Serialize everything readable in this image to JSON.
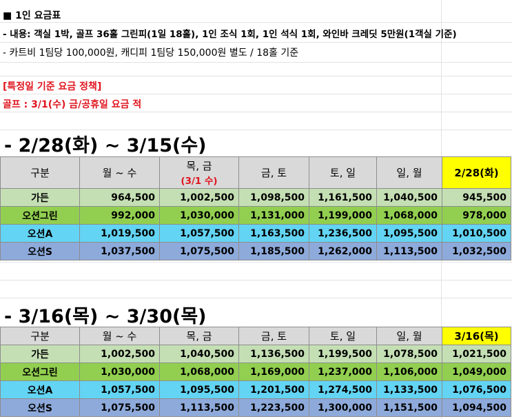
{
  "header": {
    "title": "■ 1인 요금표",
    "line1": " - 내용: 객실 1박, 골프 36홀 그린피(1일 18홀), 1인 조식 1회, 1인 석식 1회, 와인바 크레딧 5만원(1객실 기준)",
    "line2": " - 카트비 1팀당 100,000원, 캐디피 1팀당 150,000원 별도 / 18홀 기준"
  },
  "policy": {
    "title": "[특정일 기준 요금 정책]",
    "note": "골프 : 3/1(수) 금/공휴일 요금 적"
  },
  "sections": [
    {
      "title": "- 2/28(화) ~ 3/15(수)",
      "headers": [
        "구분",
        "월 ~ 수",
        "목, 금",
        "금, 토",
        "토, 일",
        "일, 월",
        "2/28(화)"
      ],
      "header_sub": "(3/1 수)",
      "rows": [
        {
          "name": "가든",
          "values": [
            "964,500",
            "1,002,500",
            "1,098,500",
            "1,161,500",
            "1,040,500",
            "945,500"
          ]
        },
        {
          "name": "오션그린",
          "values": [
            "992,000",
            "1,030,000",
            "1,131,000",
            "1,199,000",
            "1,068,000",
            "978,000"
          ]
        },
        {
          "name": "오션A",
          "values": [
            "1,019,500",
            "1,057,500",
            "1,163,500",
            "1,236,500",
            "1,095,500",
            "1,010,500"
          ]
        },
        {
          "name": "오션S",
          "values": [
            "1,037,500",
            "1,075,500",
            "1,185,500",
            "1,262,000",
            "1,113,500",
            "1,032,500"
          ]
        }
      ]
    },
    {
      "title": "- 3/16(목) ~ 3/30(목)",
      "headers": [
        "구분",
        "월 ~ 수",
        "목, 금",
        "금, 토",
        "토, 일",
        "일, 월",
        "3/16(목)"
      ],
      "rows": [
        {
          "name": "가든",
          "values": [
            "1,002,500",
            "1,040,500",
            "1,136,500",
            "1,199,500",
            "1,078,500",
            "1,021,500"
          ]
        },
        {
          "name": "오션그린",
          "values": [
            "1,030,000",
            "1,068,000",
            "1,169,000",
            "1,237,000",
            "1,106,000",
            "1,049,000"
          ]
        },
        {
          "name": "오션A",
          "values": [
            "1,057,500",
            "1,095,500",
            "1,201,500",
            "1,274,500",
            "1,133,500",
            "1,076,500"
          ]
        },
        {
          "name": "오션S",
          "values": [
            "1,075,500",
            "1,113,500",
            "1,223,500",
            "1,300,000",
            "1,151,500",
            "1,094,500"
          ]
        }
      ]
    }
  ]
}
